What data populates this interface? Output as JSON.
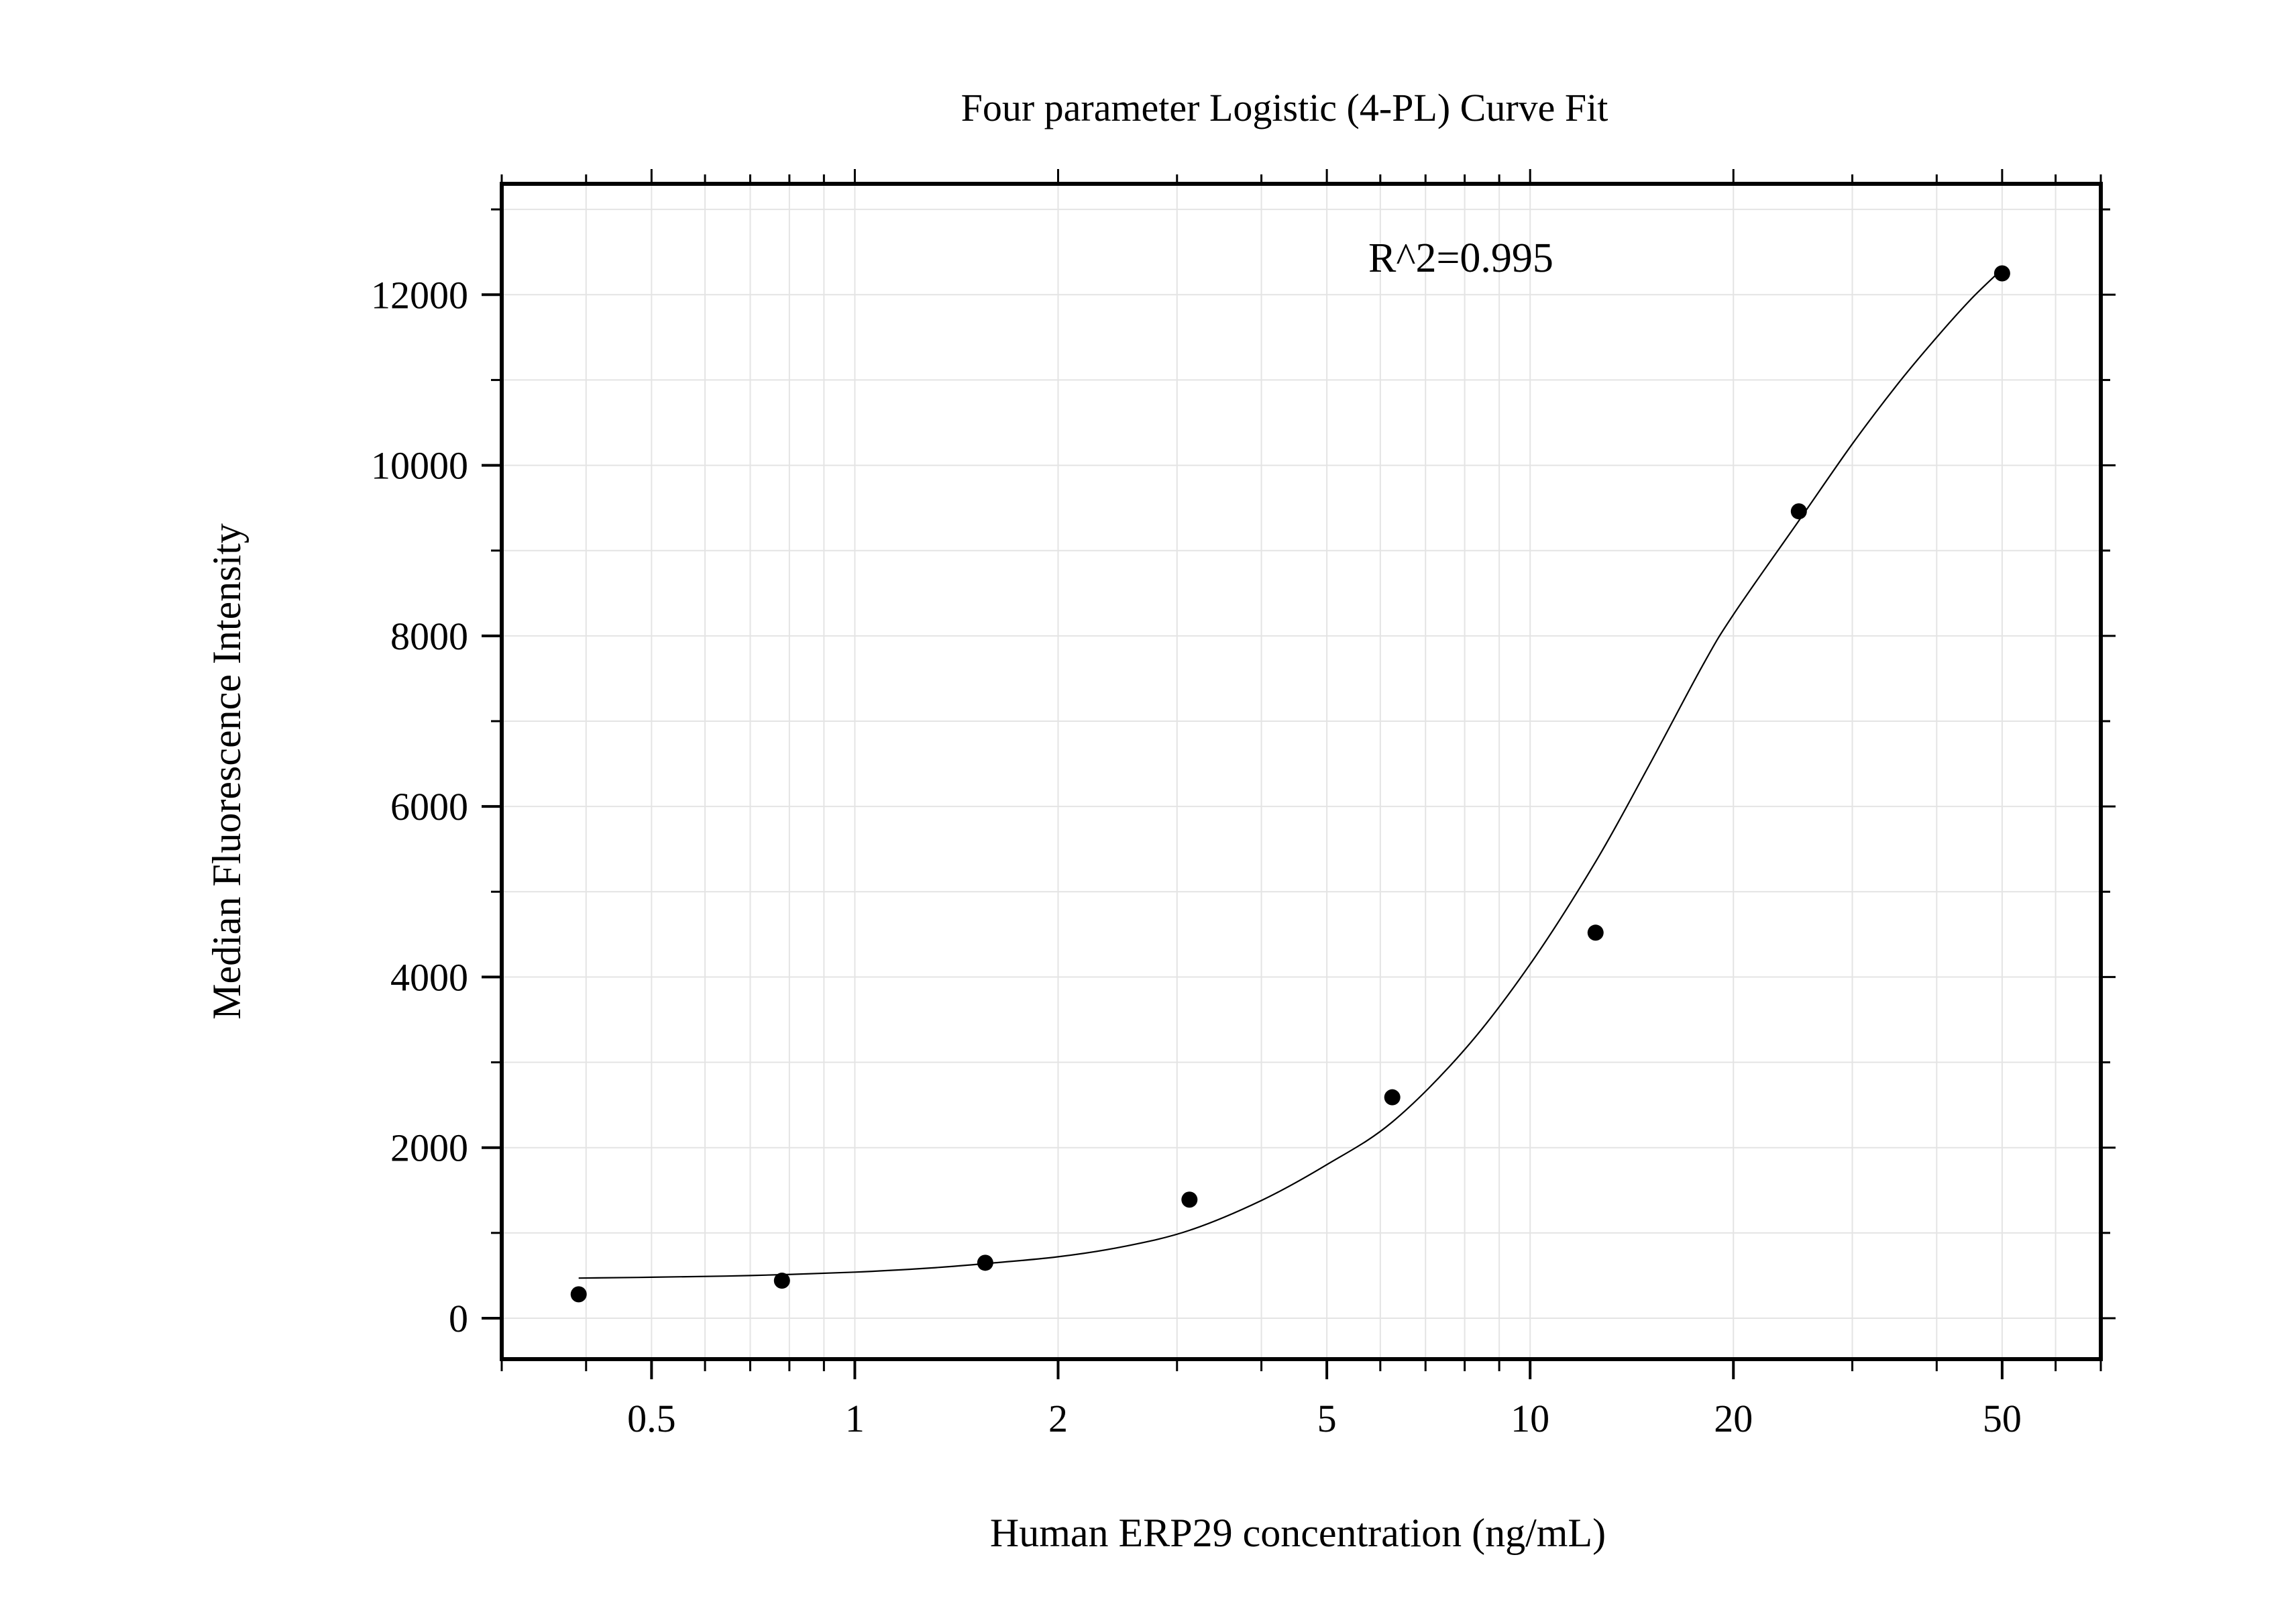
{
  "chart_data": {
    "type": "scatter",
    "title": "Four parameter Logistic (4-PL) Curve Fit",
    "xlabel": "Human ERP29 concentration (ng/mL)",
    "ylabel": "Median Fluorescence Intensity",
    "x_scale": "log",
    "xlim": [
      0.3,
      70
    ],
    "ylim": [
      -480,
      13300
    ],
    "x_ticks": [
      0.5,
      1,
      2,
      5,
      10,
      20,
      50
    ],
    "x_tick_labels": [
      "0.5",
      "1",
      "2",
      "5",
      "10",
      "20",
      "50"
    ],
    "y_ticks": [
      0,
      2000,
      4000,
      6000,
      8000,
      10000,
      12000
    ],
    "y_tick_labels": [
      "0",
      "2000",
      "4000",
      "6000",
      "8000",
      "10000",
      "12000"
    ],
    "grid": true,
    "annotation": "R^2=0.995",
    "points": {
      "x": [
        0.39,
        0.78,
        1.56,
        3.13,
        6.25,
        12.5,
        25,
        50
      ],
      "y": [
        280,
        440,
        650,
        1390,
        2590,
        4520,
        9460,
        12250
      ]
    },
    "fit_curve": {
      "model": "4-PL",
      "x": [
        0.39,
        0.5,
        0.7,
        1,
        1.3,
        1.56,
        2,
        2.5,
        3.13,
        4,
        5,
        6.25,
        8,
        10,
        12.5,
        15,
        18,
        20,
        25,
        30,
        35,
        40,
        45,
        50
      ],
      "y": [
        470,
        480,
        500,
        540,
        590,
        640,
        720,
        840,
        1030,
        1380,
        1800,
        2300,
        3150,
        4150,
        5350,
        6480,
        7650,
        8250,
        9350,
        10250,
        10950,
        11500,
        11950,
        12300
      ]
    }
  }
}
